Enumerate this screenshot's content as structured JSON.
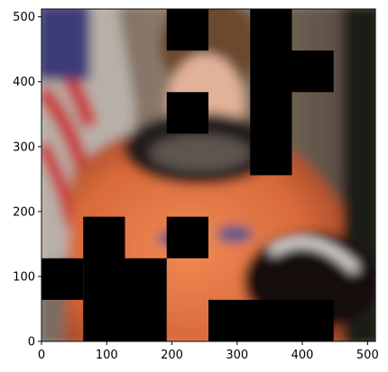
{
  "chart_data": {
    "type": "heatmap",
    "title": "",
    "xlabel": "",
    "ylabel": "",
    "xlim": [
      0,
      512
    ],
    "ylim": [
      0,
      512
    ],
    "origin": "lower",
    "xticks": [
      0,
      100,
      200,
      300,
      400,
      500
    ],
    "yticks": [
      0,
      100,
      200,
      300,
      400,
      500
    ],
    "grid": false,
    "image": {
      "subject": "blurred portrait of an astronaut in an orange flight suit, with an American flag to the upper left",
      "mask_color": "#000000",
      "masked_blocks": [
        {
          "x": [
            0,
            64
          ],
          "y": [
            64,
            128
          ]
        },
        {
          "x": [
            64,
            128
          ],
          "y": [
            0,
            192
          ]
        },
        {
          "x": [
            128,
            192
          ],
          "y": [
            0,
            128
          ]
        },
        {
          "x": [
            192,
            256
          ],
          "y": [
            128,
            192
          ]
        },
        {
          "x": [
            192,
            256
          ],
          "y": [
            320,
            384
          ]
        },
        {
          "x": [
            192,
            256
          ],
          "y": [
            448,
            512
          ]
        },
        {
          "x": [
            256,
            448
          ],
          "y": [
            0,
            64
          ]
        },
        {
          "x": [
            320,
            384
          ],
          "y": [
            256,
            512
          ]
        },
        {
          "x": [
            384,
            448
          ],
          "y": [
            384,
            448
          ]
        }
      ]
    }
  }
}
